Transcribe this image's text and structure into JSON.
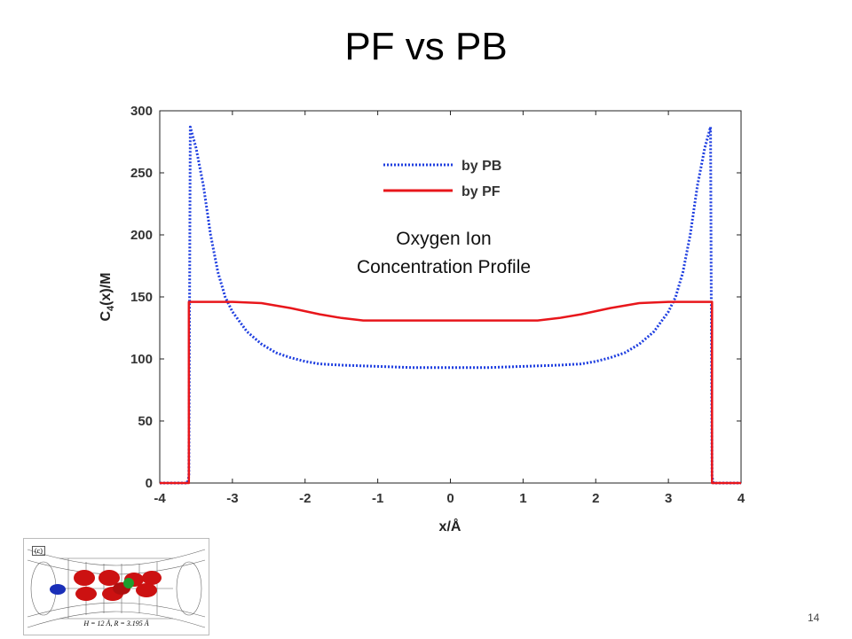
{
  "slide": {
    "title": "PF vs PB",
    "annotation_line1": "Oxygen Ion",
    "annotation_line2": "Concentration Profile",
    "page_number": "14"
  },
  "inset": {
    "tag": "(c)",
    "caption": "H = 12 Å, R = 3.195 Å"
  },
  "chart_data": {
    "type": "line",
    "xlabel": "x/Å",
    "ylabel": "C4(x)/M",
    "xlim": [
      -4,
      4
    ],
    "ylim": [
      0,
      300
    ],
    "xticks": [
      -4,
      -3,
      -2,
      -1,
      0,
      1,
      2,
      3,
      4
    ],
    "yticks": [
      0,
      50,
      100,
      150,
      200,
      250,
      300
    ],
    "grid": false,
    "legend_position": "top-center",
    "series": [
      {
        "name": "by PB",
        "color": "#1f3fe0",
        "style": "dotted",
        "x": [
          -4,
          -3.62,
          -3.6,
          -3.58,
          -3.5,
          -3.4,
          -3.3,
          -3.2,
          -3.1,
          -3.0,
          -2.8,
          -2.6,
          -2.4,
          -2.2,
          -2.0,
          -1.8,
          -1.5,
          -1.0,
          -0.5,
          0,
          0.5,
          1.0,
          1.5,
          1.8,
          2.0,
          2.2,
          2.4,
          2.6,
          2.8,
          3.0,
          3.1,
          3.2,
          3.3,
          3.4,
          3.5,
          3.58,
          3.6,
          3.62,
          4
        ],
        "y": [
          0,
          0,
          5,
          287,
          270,
          240,
          200,
          170,
          150,
          138,
          122,
          112,
          105,
          101,
          98,
          96,
          95,
          94,
          93,
          93,
          93,
          94,
          95,
          96,
          98,
          101,
          105,
          112,
          122,
          138,
          150,
          170,
          200,
          240,
          270,
          287,
          5,
          0,
          0
        ]
      },
      {
        "name": "by PF",
        "color": "#e8161b",
        "style": "solid",
        "x": [
          -4,
          -3.6,
          -3.6,
          -3.0,
          -2.6,
          -2.2,
          -1.8,
          -1.5,
          -1.2,
          -1.0,
          0,
          1.0,
          1.2,
          1.5,
          1.8,
          2.2,
          2.6,
          3.0,
          3.6,
          3.6,
          4
        ],
        "y": [
          0,
          0,
          146,
          146,
          145,
          141,
          136,
          133,
          131,
          131,
          131,
          131,
          131,
          133,
          136,
          141,
          145,
          146,
          146,
          0,
          0
        ]
      }
    ]
  }
}
